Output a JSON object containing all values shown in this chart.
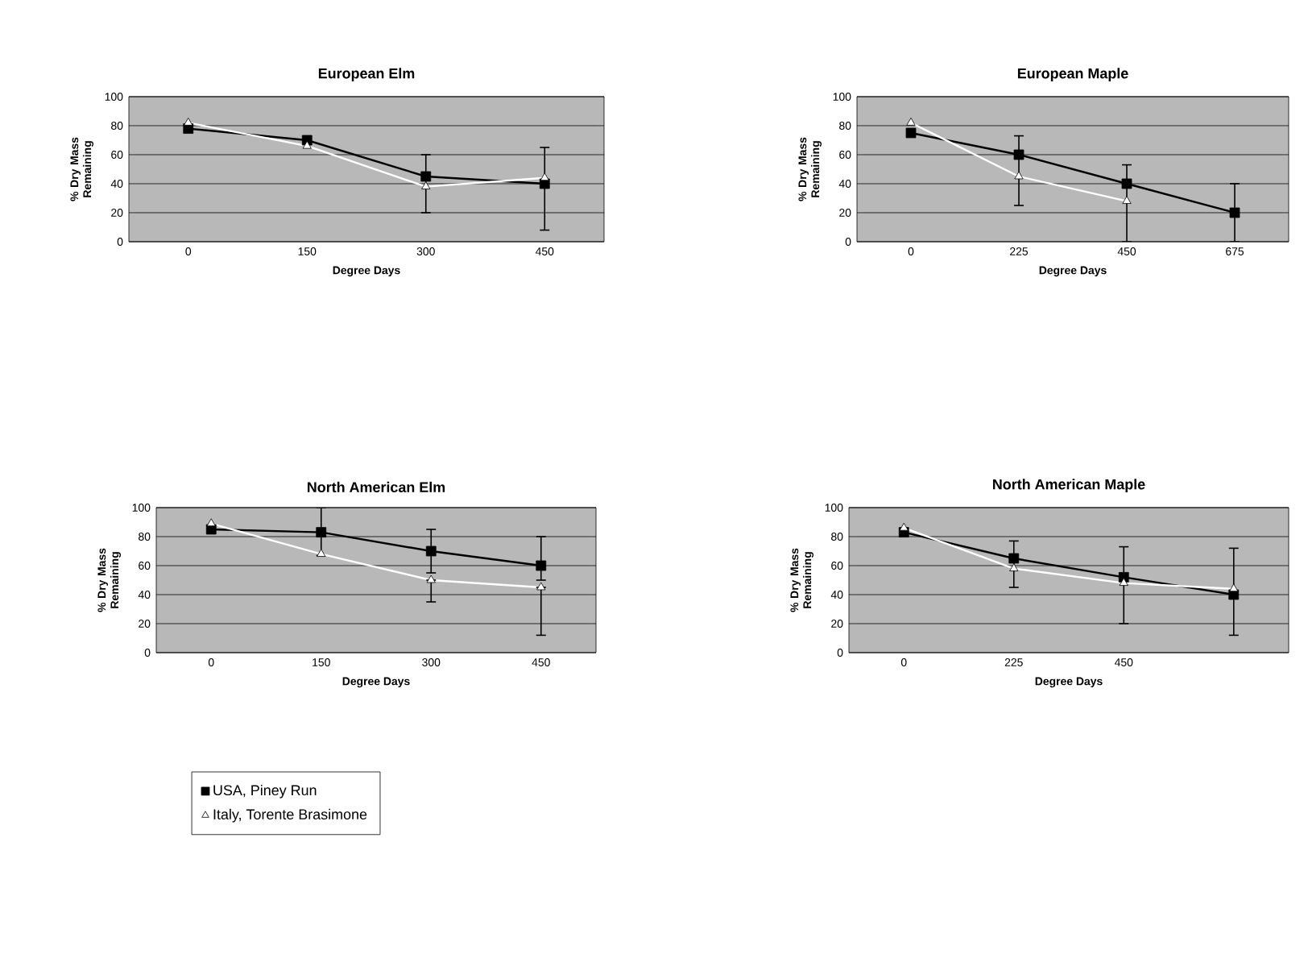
{
  "chart_data": [
    {
      "type": "line",
      "title": "European Elm",
      "xlabel": "Degree Days",
      "ylabel": "% Dry Mass Remaining",
      "categories": [
        "0",
        "150",
        "300",
        "450"
      ],
      "ylim": [
        0,
        100
      ],
      "yticks": [
        0,
        20,
        40,
        60,
        80,
        100
      ],
      "grid": "y",
      "legend": false,
      "series": [
        {
          "color": "#000000",
          "marker": "square",
          "values": [
            78,
            70,
            45,
            40
          ],
          "errors": [
            null,
            null,
            [
              20,
              60
            ],
            [
              8,
              65
            ]
          ]
        },
        {
          "color": "#ffffff",
          "marker": "triangle",
          "values": [
            82,
            66,
            38,
            44
          ]
        }
      ]
    },
    {
      "type": "line",
      "title": "European Maple",
      "xlabel": "Degree Days",
      "ylabel": "% Dry Mass Remaining",
      "categories": [
        "0",
        "225",
        "450",
        "675"
      ],
      "ylim": [
        0,
        100
      ],
      "yticks": [
        0,
        20,
        40,
        60,
        80,
        100
      ],
      "grid": "y",
      "legend": false,
      "series": [
        {
          "color": "#000000",
          "marker": "square",
          "values": [
            75,
            60,
            40,
            20
          ],
          "errors": [
            null,
            [
              25,
              73
            ],
            [
              0,
              53
            ],
            [
              0,
              40
            ]
          ]
        },
        {
          "color": "#ffffff",
          "marker": "triangle",
          "values": [
            82,
            45,
            28,
            null
          ]
        }
      ]
    },
    {
      "type": "line",
      "title": "North American Elm",
      "xlabel": "Degree Days",
      "ylabel": "% Dry Mass Remaining",
      "categories": [
        "0",
        "150",
        "300",
        "450"
      ],
      "ylim": [
        0,
        100
      ],
      "yticks": [
        0,
        20,
        40,
        60,
        80,
        100
      ],
      "grid": "y",
      "legend": "bottom",
      "series": [
        {
          "name": "USA, Piney Run",
          "color": "#000000",
          "marker": "square",
          "values": [
            85,
            83,
            70,
            60
          ],
          "errors": [
            null,
            [
              67,
              100
            ],
            [
              55,
              85
            ],
            [
              50,
              80
            ]
          ]
        },
        {
          "name": "Italy, Torente Brasimone",
          "color": "#ffffff",
          "marker": "triangle",
          "values": [
            89,
            68,
            50,
            45
          ],
          "errors": [
            null,
            null,
            [
              35,
              50
            ],
            [
              12,
              45
            ]
          ]
        }
      ]
    },
    {
      "type": "line",
      "title": "North American Maple",
      "xlabel": "Degree Days",
      "ylabel": "% Dry Mass Remaining",
      "categories": [
        "0",
        "225",
        "450",
        null
      ],
      "ylim": [
        0,
        100
      ],
      "yticks": [
        0,
        20,
        40,
        60,
        80,
        100
      ],
      "grid": "y",
      "legend": false,
      "series": [
        {
          "color": "#000000",
          "marker": "square",
          "values": [
            83,
            65,
            52,
            40
          ],
          "errors": [
            null,
            [
              45,
              77
            ],
            [
              20,
              73
            ],
            null
          ]
        },
        {
          "color": "#ffffff",
          "marker": "triangle",
          "values": [
            86,
            58,
            48,
            44
          ],
          "errors": [
            null,
            null,
            null,
            [
              12,
              72
            ]
          ]
        }
      ]
    }
  ]
}
